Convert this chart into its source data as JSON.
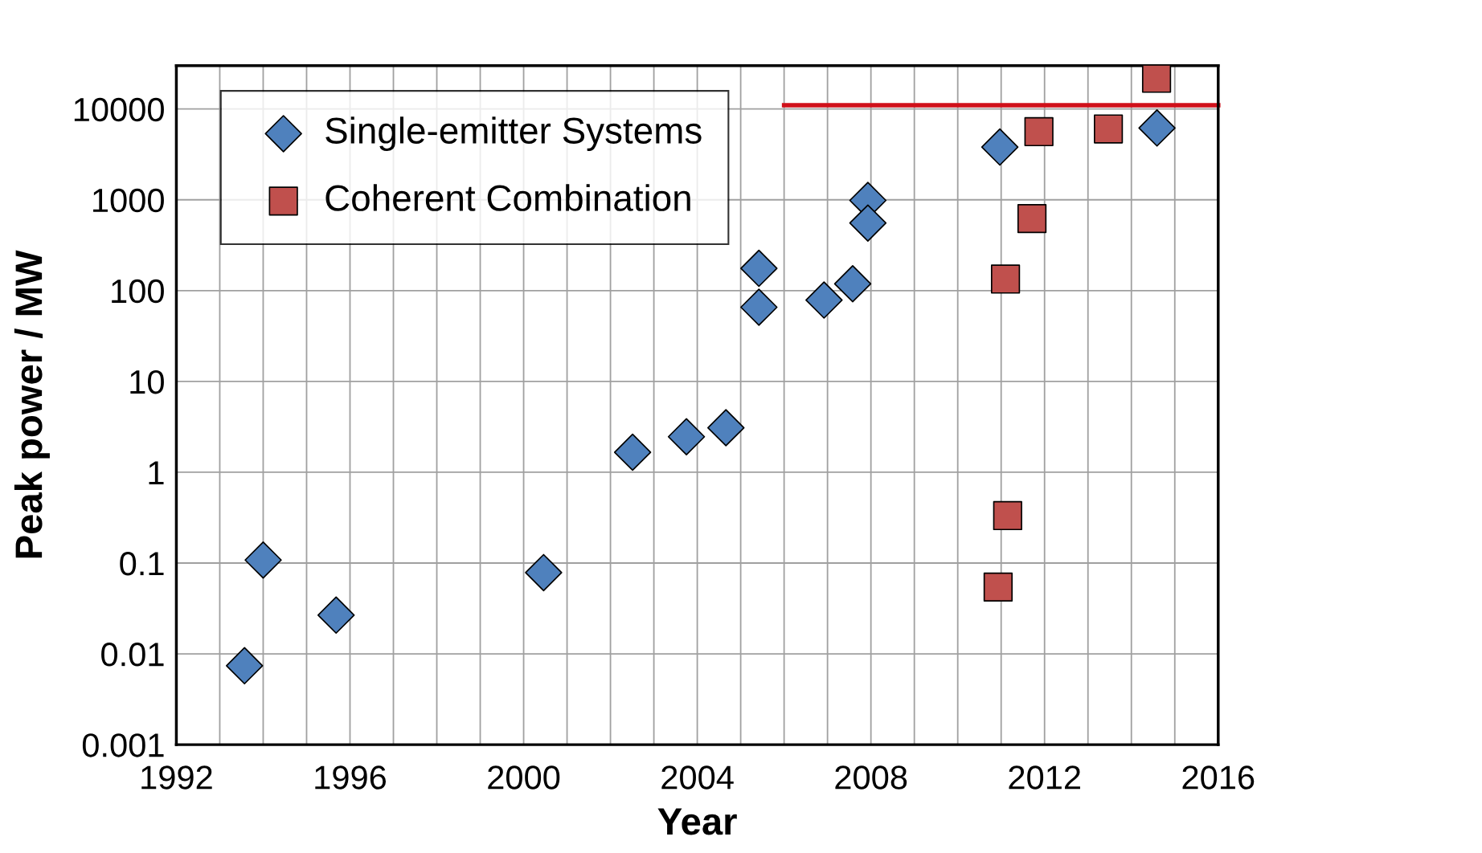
{
  "chart_data": {
    "type": "scatter",
    "xlabel": "Year",
    "ylabel": "Peak power / MW",
    "log": "y",
    "grid": true,
    "legend": "top left",
    "xlim": [
      1992,
      2016
    ],
    "ylim": [
      0.001,
      30000
    ],
    "xticks": [
      1992,
      {
        "value": 1993,
        "label": null
      },
      {
        "value": 1994,
        "label": null
      },
      {
        "value": 1995,
        "label": null
      },
      1996,
      {
        "value": 1997,
        "label": null
      },
      {
        "value": 1998,
        "label": null
      },
      {
        "value": 1999,
        "label": null
      },
      2000,
      {
        "value": 2001,
        "label": null
      },
      {
        "value": 2002,
        "label": null
      },
      {
        "value": 2003,
        "label": null
      },
      2004,
      {
        "value": 2005,
        "label": null
      },
      {
        "value": 2006,
        "label": null
      },
      {
        "value": 2007,
        "label": null
      },
      2008,
      {
        "value": 2009,
        "label": null
      },
      {
        "value": 2010,
        "label": null
      },
      {
        "value": 2011,
        "label": null
      },
      2012,
      {
        "value": 2013,
        "label": null
      },
      {
        "value": 2014,
        "label": null
      },
      {
        "value": 2015,
        "label": null
      },
      2016
    ],
    "yticks": [
      0.001,
      0.01,
      0.1,
      1,
      10,
      100,
      1000,
      10000
    ],
    "series": [
      {
        "name": "Single-emitter Systems",
        "color": "#4f81bd",
        "marker": "diamond",
        "x": [
          1993.57,
          1994.0,
          1995.68,
          2000.46,
          2002.51,
          2003.75,
          2004.66,
          2005.42,
          2005.42,
          2006.92,
          2007.58,
          2007.93,
          2007.93,
          2010.97,
          2014.59
        ],
        "values": [
          0.0074,
          0.108,
          0.0267,
          0.0785,
          1.66,
          2.46,
          3.09,
          176,
          65.6,
          78.7,
          119,
          985,
          555,
          3810,
          6180
        ]
      },
      {
        "name": "Coherent Combination",
        "color": "#c0504d",
        "marker": "square",
        "x": [
          2014.58,
          2011.87,
          2013.47,
          2011.71,
          2011.1,
          2011.15,
          2010.93
        ],
        "values": [
          21800,
          5630,
          6030,
          622,
          134,
          0.333,
          0.0544
        ]
      },
      {
        "type": "line",
        "color": "#d0101a",
        "marker": "none",
        "x": [
          2006,
          2016
        ],
        "values": [
          11000,
          11000
        ]
      }
    ]
  }
}
